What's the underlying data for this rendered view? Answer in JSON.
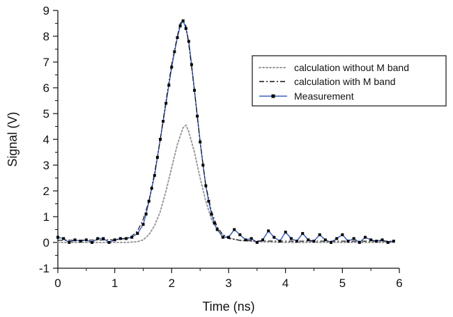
{
  "chart_data": {
    "type": "line",
    "title": "",
    "xlabel": "Time (ns)",
    "ylabel": "Signal (V)",
    "xlim": [
      0,
      6
    ],
    "ylim": [
      -1,
      9
    ],
    "xticks": [
      0,
      1,
      2,
      3,
      4,
      5,
      6
    ],
    "yticks": [
      -1,
      0,
      1,
      2,
      3,
      4,
      5,
      6,
      7,
      8,
      9
    ],
    "grid": false,
    "legend_position": "top-right",
    "series": [
      {
        "name": "calculation without M band",
        "style": "dotted",
        "color": "#9a9a9a",
        "x": [
          0.0,
          1.2,
          1.4,
          1.5,
          1.6,
          1.7,
          1.8,
          1.9,
          2.0,
          2.1,
          2.2,
          2.25,
          2.3,
          2.4,
          2.5,
          2.6,
          2.7,
          2.8,
          2.9,
          3.0,
          3.2,
          3.5,
          4.0,
          5.0,
          5.9
        ],
        "y": [
          0.0,
          0.0,
          0.03,
          0.1,
          0.3,
          0.65,
          1.2,
          2.0,
          2.9,
          3.8,
          4.45,
          4.55,
          4.3,
          3.5,
          2.5,
          1.6,
          0.9,
          0.5,
          0.3,
          0.18,
          0.08,
          0.03,
          0.0,
          0.0,
          0.0
        ]
      },
      {
        "name": "calculation with M band",
        "style": "dash-dot",
        "color": "#111111",
        "x": [
          0.0,
          1.0,
          1.2,
          1.3,
          1.4,
          1.5,
          1.6,
          1.7,
          1.8,
          1.9,
          2.0,
          2.1,
          2.15,
          2.2,
          2.25,
          2.3,
          2.4,
          2.5,
          2.6,
          2.7,
          2.8,
          2.9,
          3.0,
          3.2,
          3.5,
          4.0,
          5.0,
          5.9
        ],
        "y": [
          0.08,
          0.1,
          0.15,
          0.25,
          0.45,
          0.9,
          1.6,
          2.7,
          4.0,
          5.5,
          6.9,
          8.0,
          8.5,
          8.6,
          8.4,
          7.7,
          5.9,
          3.9,
          2.2,
          1.2,
          0.6,
          0.3,
          0.15,
          0.08,
          0.06,
          0.05,
          0.05,
          0.05
        ]
      },
      {
        "name": "Measurement",
        "style": "solid-square-markers",
        "color": "#3a60c0",
        "x": [
          0.0,
          0.1,
          0.2,
          0.3,
          0.4,
          0.5,
          0.6,
          0.7,
          0.8,
          0.9,
          1.0,
          1.1,
          1.2,
          1.3,
          1.4,
          1.5,
          1.55,
          1.6,
          1.65,
          1.7,
          1.75,
          1.8,
          1.85,
          1.9,
          1.95,
          2.0,
          2.05,
          2.1,
          2.15,
          2.2,
          2.25,
          2.3,
          2.35,
          2.4,
          2.45,
          2.5,
          2.55,
          2.6,
          2.65,
          2.7,
          2.75,
          2.8,
          2.9,
          3.0,
          3.1,
          3.2,
          3.3,
          3.4,
          3.5,
          3.6,
          3.7,
          3.8,
          3.9,
          4.0,
          4.1,
          4.2,
          4.3,
          4.4,
          4.5,
          4.6,
          4.7,
          4.8,
          4.9,
          5.0,
          5.1,
          5.2,
          5.3,
          5.4,
          5.5,
          5.6,
          5.7,
          5.8,
          5.9
        ],
        "y": [
          0.2,
          0.15,
          0.0,
          0.1,
          0.05,
          0.1,
          0.0,
          0.15,
          0.15,
          0.0,
          0.1,
          0.15,
          0.15,
          0.2,
          0.35,
          0.7,
          1.1,
          1.6,
          2.1,
          2.6,
          3.3,
          4.0,
          4.7,
          5.4,
          6.1,
          6.8,
          7.4,
          7.95,
          8.4,
          8.6,
          8.3,
          7.8,
          6.9,
          5.9,
          4.9,
          3.9,
          3.0,
          2.2,
          1.6,
          1.1,
          0.75,
          0.5,
          0.2,
          0.2,
          0.5,
          0.3,
          0.1,
          0.15,
          0.0,
          0.1,
          0.45,
          0.2,
          0.05,
          0.4,
          0.15,
          0.05,
          0.35,
          0.1,
          0.05,
          0.3,
          0.1,
          0.0,
          0.15,
          0.3,
          0.05,
          0.15,
          0.0,
          0.2,
          0.1,
          0.05,
          0.1,
          0.0,
          0.05
        ]
      }
    ]
  }
}
